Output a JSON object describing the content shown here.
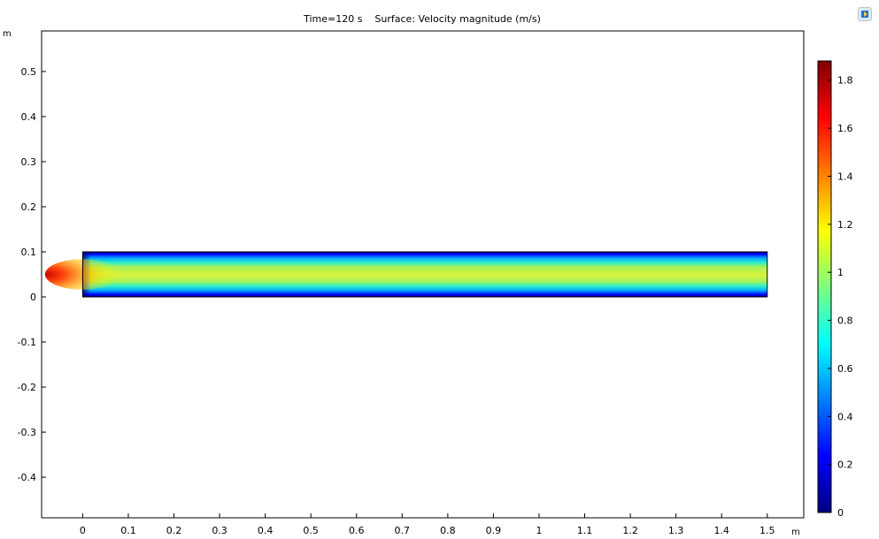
{
  "chart_data": {
    "type": "heatmap",
    "title": "Time=120 s    Surface: Velocity magnitude (m/s)",
    "x_unit": "m",
    "y_unit": "m",
    "xlim": [
      -0.09,
      1.58
    ],
    "ylim": [
      -0.49,
      0.59
    ],
    "x_ticks": [
      "0",
      "0.1",
      "0.2",
      "0.3",
      "0.4",
      "0.5",
      "0.6",
      "0.7",
      "0.8",
      "0.9",
      "1",
      "1.1",
      "1.2",
      "1.3",
      "1.4",
      "1.5"
    ],
    "x_tick_values": [
      0,
      0.1,
      0.2,
      0.3,
      0.4,
      0.5,
      0.6,
      0.7,
      0.8,
      0.9,
      1,
      1.1,
      1.2,
      1.3,
      1.4,
      1.5
    ],
    "y_ticks": [
      "0.5",
      "0.4",
      "0.3",
      "0.2",
      "0.1",
      "0",
      "-0.1",
      "-0.2",
      "-0.3",
      "-0.4"
    ],
    "y_tick_values": [
      0.5,
      0.4,
      0.3,
      0.2,
      0.1,
      0,
      -0.1,
      -0.2,
      -0.3,
      -0.4
    ],
    "domain": {
      "x": [
        0,
        1.5
      ],
      "y": [
        0,
        0.1
      ]
    },
    "field": {
      "name": "Velocity magnitude",
      "unit": "m/s",
      "inlet_peak": 1.88,
      "core_value": 1.12,
      "wall_value": 0
    },
    "colorbar": {
      "min": 0,
      "max": 1.88,
      "colormap": "rainbow",
      "tick_labels": [
        "1.8",
        "1.6",
        "1.4",
        "1.2",
        "1",
        "0.8",
        "0.6",
        "0.4",
        "0.2",
        "0"
      ],
      "tick_values": [
        1.8,
        1.6,
        1.4,
        1.2,
        1,
        0.8,
        0.6,
        0.4,
        0.2,
        0
      ]
    },
    "grid": false
  },
  "toolbar": {
    "icon": "export-image-icon"
  }
}
